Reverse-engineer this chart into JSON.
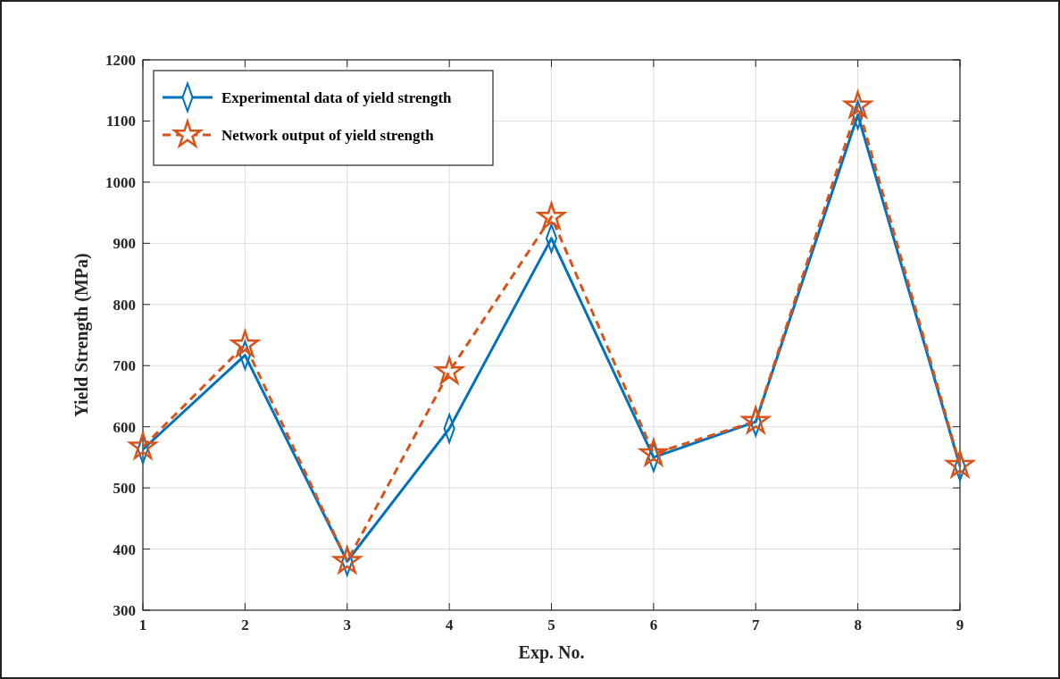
{
  "chart_data": {
    "type": "line",
    "xlabel": "Exp. No.",
    "ylabel": "Yield Strength (MPa)",
    "x": [
      1,
      2,
      3,
      4,
      5,
      6,
      7,
      8,
      9
    ],
    "xlim": [
      1,
      9
    ],
    "xticks": [
      1,
      2,
      3,
      4,
      5,
      6,
      7,
      8,
      9
    ],
    "ylim": [
      300,
      1200
    ],
    "yticks": [
      300,
      400,
      500,
      600,
      700,
      800,
      900,
      1000,
      1100,
      1200
    ],
    "grid": true,
    "legend": "top left",
    "series": [
      {
        "name": "Experimental data of yield strength",
        "color": "#0072bd",
        "marker": "diamond",
        "line_style": "solid",
        "values": [
          563,
          717,
          380,
          597,
          908,
          550,
          608,
          1110,
          535
        ]
      },
      {
        "name": "Network output of yield strength",
        "color": "#d95319",
        "marker": "star",
        "line_style": "dashed",
        "values": [
          567,
          734,
          380,
          690,
          943,
          556,
          609,
          1125,
          537
        ]
      }
    ]
  }
}
